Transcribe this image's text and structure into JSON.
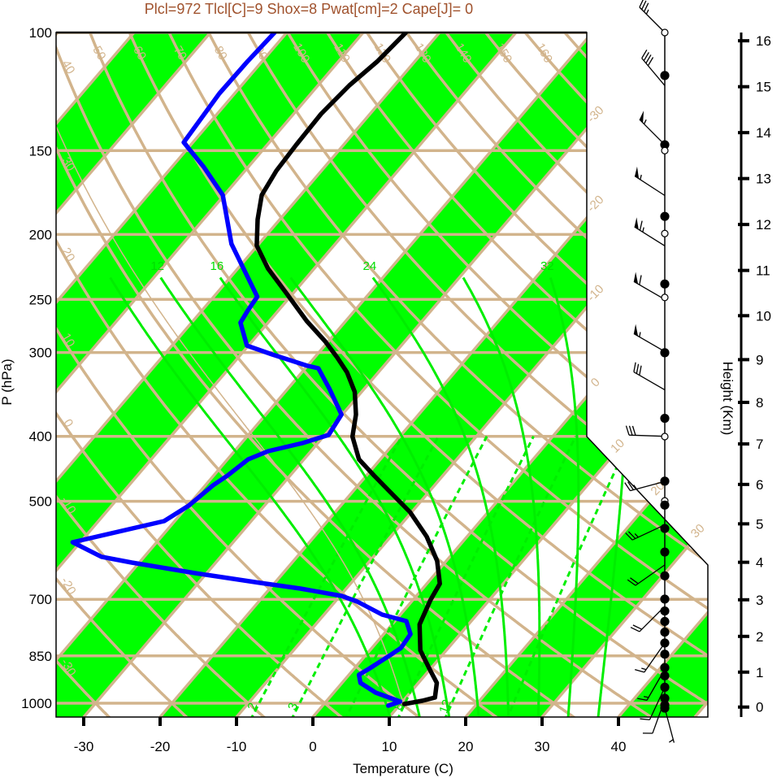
{
  "title": "Plcl=972 Tlcl[C]=9 Shox=8 Pwat[cm]=2 Cape[J]= 0",
  "colors": {
    "band_green": "#00ff00",
    "grid_tan": "#d2b48c",
    "moist_green": "#00ee00",
    "temperature": "#000000",
    "dewpoint": "#0000ff",
    "title": "#a0522d"
  },
  "chart_data": {
    "type": "skew-t",
    "title": "Plcl=972 Tlcl[C]=9 Shox=8 Pwat[cm]=2 Cape[J]= 0",
    "xlabel": "Temperature (C)",
    "ylabel": "P (hPa)",
    "y2label": "Height (Km)",
    "x_ticks": [
      -30,
      -20,
      -10,
      0,
      10,
      20,
      30,
      40
    ],
    "p_ticks": [
      100,
      150,
      200,
      250,
      300,
      400,
      500,
      700,
      850,
      1000
    ],
    "height_ticks": [
      0,
      1,
      2,
      3,
      4,
      5,
      6,
      7,
      8,
      9,
      10,
      11,
      12,
      13,
      14,
      15,
      16
    ],
    "ylim_hpa": [
      1050,
      100
    ],
    "xlim_at_bottom_c": [
      -33.6,
      51.7
    ],
    "temperature": {
      "name": "Temperature",
      "p": [
        100,
        110.3,
        119.9,
        132.2,
        147,
        160.7,
        174.7,
        190,
        207.8,
        224.7,
        244.3,
        269.3,
        288.8,
        305.4,
        321.1,
        343.4,
        371.2,
        400.3,
        432.9,
        457.7,
        484,
        519,
        564.3,
        613.6,
        663.4,
        701.6,
        762.9,
        834,
        894.3,
        932.6,
        980.6,
        991.6,
        1002.8
      ],
      "t": [
        -64.4,
        -64.9,
        -65.9,
        -66.4,
        -66.2,
        -65.9,
        -65.1,
        -62.9,
        -60.1,
        -56.1,
        -51.0,
        -45.1,
        -40.4,
        -37.0,
        -34.1,
        -30.9,
        -28.2,
        -26.2,
        -22.8,
        -19.0,
        -15.1,
        -10.2,
        -5.3,
        -1.2,
        1.7,
        2.3,
        3.6,
        6.6,
        10.2,
        12.4,
        13.8,
        12.5,
        10.5
      ]
    },
    "dewpoint": {
      "name": "Dewpoint",
      "p": [
        100,
        110.3,
        123.3,
        145.8,
        158.5,
        174.7,
        206.6,
        224.7,
        247.7,
        259.7,
        270.8,
        292.9,
        302,
        314,
        316.7,
        339.5,
        371.2,
        398.1,
        409.4,
        421,
        432.9,
        457.7,
        473.3,
        507.5,
        535.2,
        575.4,
        604.9,
        617,
        639.8,
        661.6,
        674.6,
        691.8,
        705.5,
        737.6,
        754.3,
        788.7,
        827.1,
        848.2,
        886.9,
        906.9,
        932.6,
        964.4,
        994.4,
        1008.4
      ],
      "t": [
        -81.6,
        -81.9,
        -82.0,
        -81.2,
        -75.9,
        -70.2,
        -63.6,
        -59.3,
        -54.3,
        -54.0,
        -53.6,
        -50.2,
        -45.9,
        -40.0,
        -38.3,
        -34.6,
        -30.1,
        -29.5,
        -32.0,
        -35.6,
        -37.3,
        -38.2,
        -39.0,
        -39.9,
        -41.4,
        -51.0,
        -45.6,
        -41.0,
        -31.5,
        -21.9,
        -16.0,
        -9.8,
        -7.1,
        -2.4,
        1.5,
        3.5,
        3.8,
        3.2,
        2.0,
        1.3,
        2.4,
        5.5,
        9.7,
        8.6
      ]
    },
    "parcel": {
      "p_start": 1002.8,
      "t_start": 10.5,
      "plcl": 972,
      "tlcl": 9
    },
    "isotherm_labels": [
      -30,
      -20,
      -10,
      0,
      10,
      20,
      30
    ],
    "dry_adiabat_labels_top": [
      50,
      60,
      70,
      80,
      90,
      100,
      110,
      120,
      130,
      140,
      150,
      160
    ],
    "dry_adiabat_labels_left": [
      40,
      30,
      20,
      10,
      0,
      -10,
      -20,
      -30
    ],
    "moist_adiabat_lines": [
      8,
      12,
      16,
      20,
      24,
      28,
      32,
      36
    ],
    "moist_adiabat_labels": [
      12,
      16,
      24,
      32
    ],
    "mixing_ratio_lines": [
      2,
      3,
      5,
      8,
      12,
      20
    ],
    "mixing_ratio_labels": [
      2,
      3,
      8,
      12
    ],
    "wind_barbs": [
      {
        "p": 100,
        "dir": 315,
        "speed": 35
      },
      {
        "p": 120,
        "dir": 320,
        "speed": 40
      },
      {
        "p": 147,
        "dir": 315,
        "speed": 55
      },
      {
        "p": 175,
        "dir": 303,
        "speed": 55
      },
      {
        "p": 208,
        "dir": 302,
        "speed": 65
      },
      {
        "p": 250,
        "dir": 300,
        "speed": 60
      },
      {
        "p": 299,
        "dir": 300,
        "speed": 55
      },
      {
        "p": 341,
        "dir": 300,
        "speed": 30
      },
      {
        "p": 400,
        "dir": 272,
        "speed": 30
      },
      {
        "p": 467,
        "dir": 255,
        "speed": 25
      },
      {
        "p": 542,
        "dir": 245,
        "speed": 25
      },
      {
        "p": 622,
        "dir": 235,
        "speed": 20
      },
      {
        "p": 717,
        "dir": 225,
        "speed": 20
      },
      {
        "p": 813,
        "dir": 215,
        "speed": 15
      },
      {
        "p": 890,
        "dir": 210,
        "speed": 15
      },
      {
        "p": 947,
        "dir": 205,
        "speed": 10
      },
      {
        "p": 988,
        "dir": 200,
        "speed": 10
      },
      {
        "p": 1017,
        "dir": 165,
        "speed": 5
      }
    ],
    "height_marks": [
      {
        "p": 100,
        "filled": false
      },
      {
        "p": 115.9,
        "filled": true
      },
      {
        "p": 147,
        "filled": true
      },
      {
        "p": 150,
        "filled": false
      },
      {
        "p": 188,
        "filled": true
      },
      {
        "p": 199.4,
        "filled": false
      },
      {
        "p": 237.1,
        "filled": true
      },
      {
        "p": 248.3,
        "filled": false
      },
      {
        "p": 300.2,
        "filled": true
      },
      {
        "p": 376,
        "filled": true
      },
      {
        "p": 400.3,
        "filled": false
      },
      {
        "p": 466.6,
        "filled": true
      },
      {
        "p": 499.3,
        "filled": false
      },
      {
        "p": 506.5,
        "filled": true
      },
      {
        "p": 548.9,
        "filled": true
      },
      {
        "p": 595.1,
        "filled": true
      },
      {
        "p": 645.8,
        "filled": true
      },
      {
        "p": 699.5,
        "filled": true
      },
      {
        "p": 728.6,
        "filled": true
      },
      {
        "p": 755.3,
        "filled": true
      },
      {
        "p": 783.5,
        "filled": true
      },
      {
        "p": 813.2,
        "filled": true
      },
      {
        "p": 845.1,
        "filled": true
      },
      {
        "p": 885,
        "filled": true
      },
      {
        "p": 910.2,
        "filled": true
      },
      {
        "p": 946.7,
        "filled": true
      },
      {
        "p": 983.4,
        "filled": true
      },
      {
        "p": 1006,
        "filled": true
      },
      {
        "p": 1017,
        "filled": true
      }
    ]
  }
}
